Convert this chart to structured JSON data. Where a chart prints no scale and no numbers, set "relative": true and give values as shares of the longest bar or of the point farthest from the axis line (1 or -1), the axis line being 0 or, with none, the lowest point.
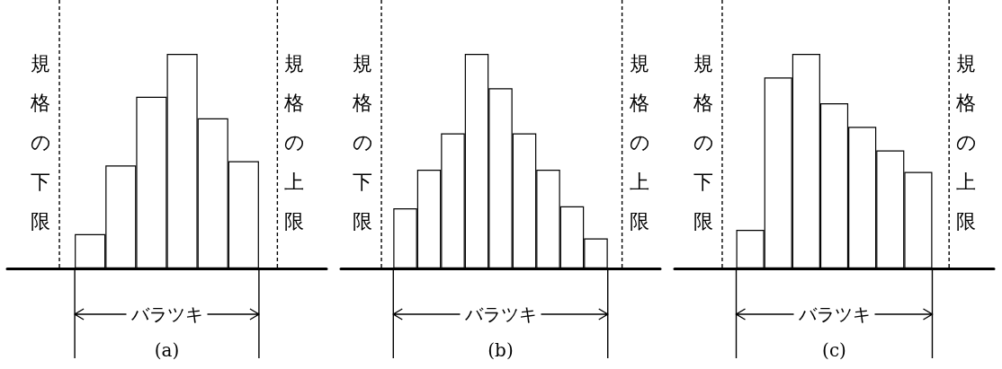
{
  "chart_data": [
    {
      "type": "bar",
      "relative": true,
      "categories": [
        null,
        null,
        null,
        null,
        null,
        null
      ],
      "values": [
        0.16,
        0.48,
        0.8,
        1,
        0.7,
        0.5
      ],
      "color": "#ffffff",
      "annotations": [
        "規格の下限",
        "規格の上限",
        "バラツキ",
        "(a)"
      ],
      "grid": false
    },
    {
      "type": "bar",
      "relative": true,
      "categories": [
        null,
        null,
        null,
        null,
        null,
        null,
        null,
        null,
        null
      ],
      "values": [
        0.28,
        0.46,
        0.63,
        1,
        0.84,
        0.63,
        0.46,
        0.29,
        0.14
      ],
      "color": "#ffffff",
      "annotations": [
        "規格の下限",
        "規格の上限",
        "バラツキ",
        "(b)"
      ],
      "grid": false
    },
    {
      "type": "bar",
      "relative": true,
      "categories": [
        null,
        null,
        null,
        null,
        null,
        null,
        null
      ],
      "values": [
        0.18,
        0.89,
        1,
        0.77,
        0.66,
        0.55,
        0.45
      ],
      "color": "#ffffff",
      "annotations": [
        "規格の下限",
        "規格の上限",
        "バラツキ",
        "(c)"
      ],
      "grid": false
    }
  ]
}
